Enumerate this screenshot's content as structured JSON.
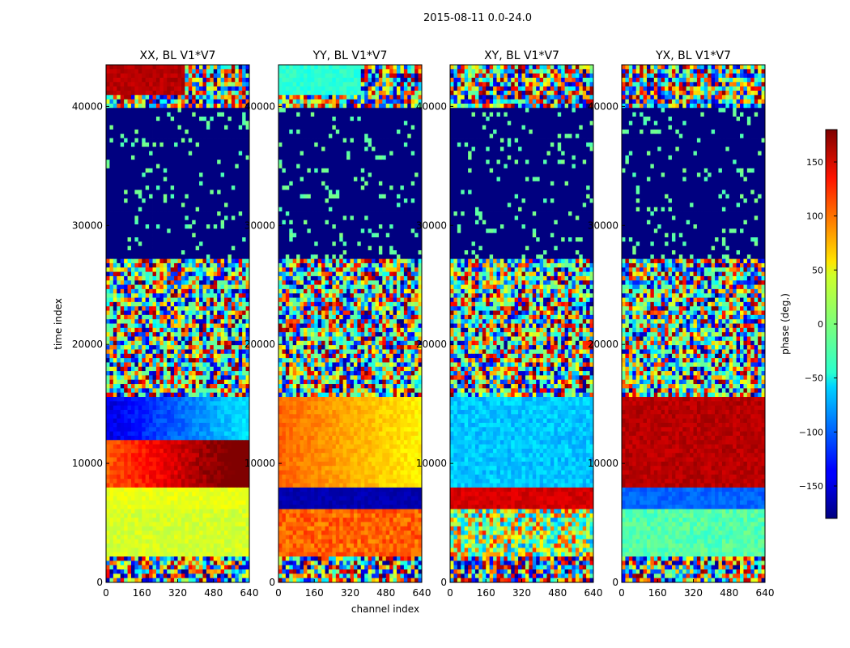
{
  "figure_title": "2015-08-11 0.0-24.0",
  "chart_data": {
    "type": "heatmap",
    "title": "2015-08-11 0.0-24.0",
    "xlabel": "channel index",
    "ylabel": "time index",
    "xlim": [
      0,
      640
    ],
    "ylim": [
      0,
      43500
    ],
    "x_ticks": [
      0,
      160,
      320,
      480,
      640
    ],
    "y_ticks": [
      0,
      10000,
      20000,
      30000,
      40000
    ],
    "panels": [
      {
        "title": "XX, BL V1*V7"
      },
      {
        "title": "YY, BL V1*V7"
      },
      {
        "title": "XY, BL V1*V7"
      },
      {
        "title": "YX, BL V1*V7"
      }
    ],
    "colorbar": {
      "label": "phase (deg.)",
      "range": [
        -180,
        180
      ],
      "ticks": [
        150,
        100,
        50,
        0,
        -50,
        -100,
        -150
      ],
      "tick_labels": [
        "150",
        "100",
        "50",
        "0",
        "−50",
        "−100",
        "−150"
      ],
      "colormap": "jet"
    }
  }
}
